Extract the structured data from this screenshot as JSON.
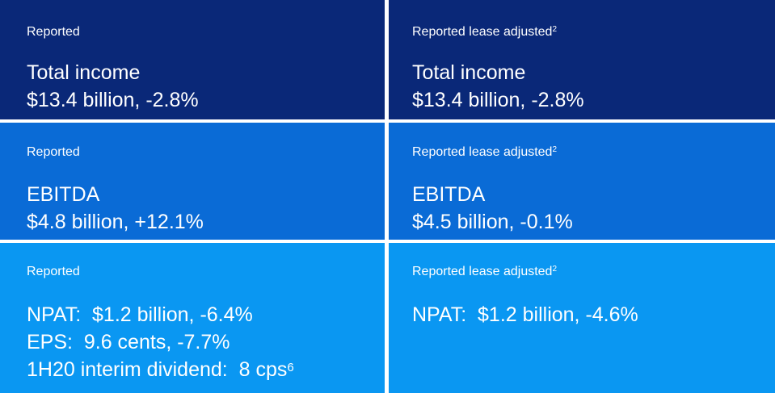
{
  "rows": [
    {
      "left": {
        "label": "Reported",
        "lines": [
          "Total income",
          "$13.4 billion, -2.8%"
        ]
      },
      "right": {
        "label": "Reported lease adjusted",
        "label_sup": "2",
        "lines": [
          "Total income",
          "$13.4 billion, -2.8%"
        ]
      }
    },
    {
      "left": {
        "label": "Reported",
        "lines": [
          "EBITDA",
          "$4.8 billion, +12.1%"
        ]
      },
      "right": {
        "label": "Reported lease adjusted",
        "label_sup": "2",
        "lines": [
          "EBITDA",
          "$4.5 billion, -0.1%"
        ]
      }
    },
    {
      "left": {
        "label": "Reported",
        "lines": [
          "NPAT:  $1.2 billion, -6.4%",
          "EPS:  9.6 cents, -7.7%",
          "1H20 interim dividend:  8 cps"
        ],
        "line3_sup": "6"
      },
      "right": {
        "label": "Reported lease adjusted",
        "label_sup": "2",
        "lines": [
          "NPAT:  $1.2 billion, -4.6%"
        ]
      }
    }
  ],
  "colors": {
    "row1": "#0a2878",
    "row2": "#0a6bd6",
    "row3": "#0a97f2",
    "text": "#ffffff"
  }
}
